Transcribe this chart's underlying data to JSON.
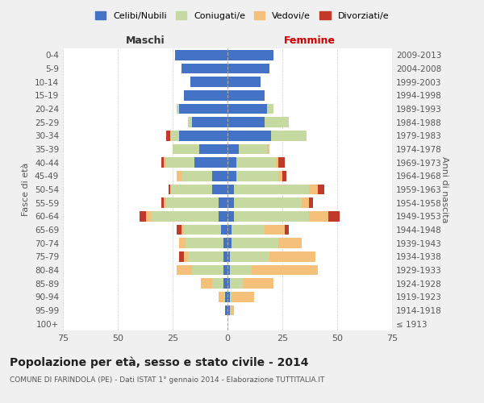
{
  "age_groups": [
    "100+",
    "95-99",
    "90-94",
    "85-89",
    "80-84",
    "75-79",
    "70-74",
    "65-69",
    "60-64",
    "55-59",
    "50-54",
    "45-49",
    "40-44",
    "35-39",
    "30-34",
    "25-29",
    "20-24",
    "15-19",
    "10-14",
    "5-9",
    "0-4"
  ],
  "birth_years": [
    "≤ 1913",
    "1914-1918",
    "1919-1923",
    "1924-1928",
    "1929-1933",
    "1934-1938",
    "1939-1943",
    "1944-1948",
    "1949-1953",
    "1954-1958",
    "1959-1963",
    "1964-1968",
    "1969-1973",
    "1974-1978",
    "1979-1983",
    "1984-1988",
    "1989-1993",
    "1994-1998",
    "1999-2003",
    "2004-2008",
    "2009-2013"
  ],
  "males": {
    "celibe": [
      0,
      1,
      1,
      2,
      2,
      2,
      2,
      3,
      4,
      4,
      7,
      7,
      15,
      13,
      22,
      16,
      22,
      20,
      17,
      21,
      24
    ],
    "coniugato": [
      0,
      0,
      1,
      5,
      14,
      16,
      17,
      17,
      31,
      24,
      19,
      14,
      13,
      12,
      4,
      2,
      1,
      0,
      0,
      0,
      0
    ],
    "vedovo": [
      0,
      0,
      2,
      5,
      7,
      2,
      3,
      1,
      2,
      1,
      0,
      2,
      1,
      0,
      0,
      0,
      0,
      0,
      0,
      0,
      0
    ],
    "divorziato": [
      0,
      0,
      0,
      0,
      0,
      2,
      0,
      2,
      3,
      1,
      1,
      0,
      1,
      0,
      2,
      0,
      0,
      0,
      0,
      0,
      0
    ]
  },
  "females": {
    "nubile": [
      0,
      1,
      1,
      1,
      1,
      1,
      2,
      2,
      3,
      3,
      3,
      4,
      4,
      5,
      20,
      17,
      18,
      17,
      15,
      19,
      21
    ],
    "coniugata": [
      0,
      0,
      1,
      6,
      10,
      18,
      21,
      15,
      34,
      31,
      34,
      19,
      18,
      13,
      16,
      11,
      3,
      0,
      0,
      0,
      0
    ],
    "vedova": [
      0,
      2,
      10,
      14,
      30,
      21,
      11,
      9,
      9,
      3,
      4,
      2,
      1,
      1,
      0,
      0,
      0,
      0,
      0,
      0,
      0
    ],
    "divorziata": [
      0,
      0,
      0,
      0,
      0,
      0,
      0,
      2,
      5,
      2,
      3,
      2,
      3,
      0,
      0,
      0,
      0,
      0,
      0,
      0,
      0
    ]
  },
  "colors": {
    "celibe": "#4472c4",
    "coniugato": "#c5d9a0",
    "vedovo": "#f5c07a",
    "divorziato": "#c0392b"
  },
  "xlim": 75,
  "title": "Popolazione per età, sesso e stato civile - 2014",
  "subtitle": "COMUNE DI FARINDOLA (PE) - Dati ISTAT 1° gennaio 2014 - Elaborazione TUTTITALIA.IT",
  "xlabel_left": "Maschi",
  "xlabel_right": "Femmine",
  "ylabel_left": "Fasce di età",
  "ylabel_right": "Anni di nascita",
  "legend_labels": [
    "Celibi/Nubili",
    "Coniugati/e",
    "Vedovi/e",
    "Divorziati/e"
  ],
  "bg_color": "#f0f0f0",
  "plot_bg_color": "#ffffff"
}
